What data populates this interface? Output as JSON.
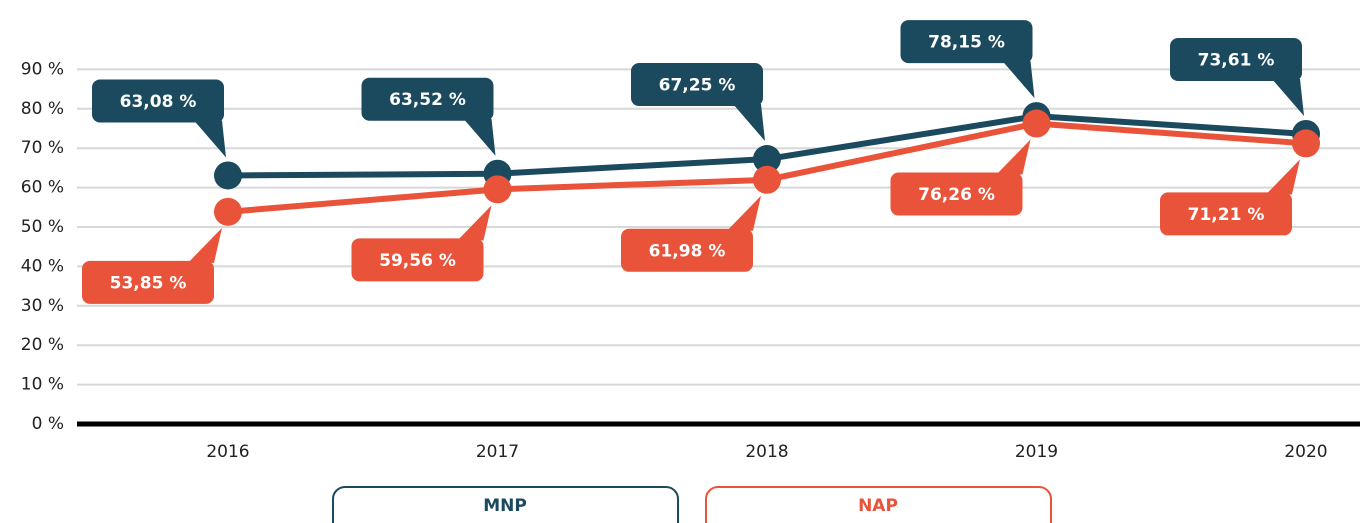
{
  "chart_data": {
    "type": "line",
    "categories": [
      "2016",
      "2017",
      "2018",
      "2019",
      "2020"
    ],
    "series": [
      {
        "name": "MNP",
        "color": "#1b4a5e",
        "values": [
          63.08,
          63.52,
          67.25,
          78.15,
          73.61
        ],
        "value_labels": [
          "63,08 %",
          "63,52 %",
          "67,25 %",
          "78,15 %",
          "73,61 %"
        ]
      },
      {
        "name": "NAP",
        "color": "#e8533a",
        "values": [
          53.85,
          59.56,
          61.98,
          76.26,
          71.21
        ],
        "value_labels": [
          "53,85 %",
          "59,56 %",
          "61,98 %",
          "76,26 %",
          "71,21 %"
        ]
      }
    ],
    "ylim": [
      0,
      100
    ],
    "yticks": [
      {
        "value": 0,
        "label": "0 %"
      },
      {
        "value": 10,
        "label": "10 %"
      },
      {
        "value": 20,
        "label": "20 %"
      },
      {
        "value": 30,
        "label": "30 %"
      },
      {
        "value": 40,
        "label": "40 %"
      },
      {
        "value": 50,
        "label": "50 %"
      },
      {
        "value": 60,
        "label": "60 %"
      },
      {
        "value": 70,
        "label": "70 %"
      },
      {
        "value": 80,
        "label": "80 %"
      },
      {
        "value": 90,
        "label": "90 %"
      }
    ],
    "grid": true
  }
}
